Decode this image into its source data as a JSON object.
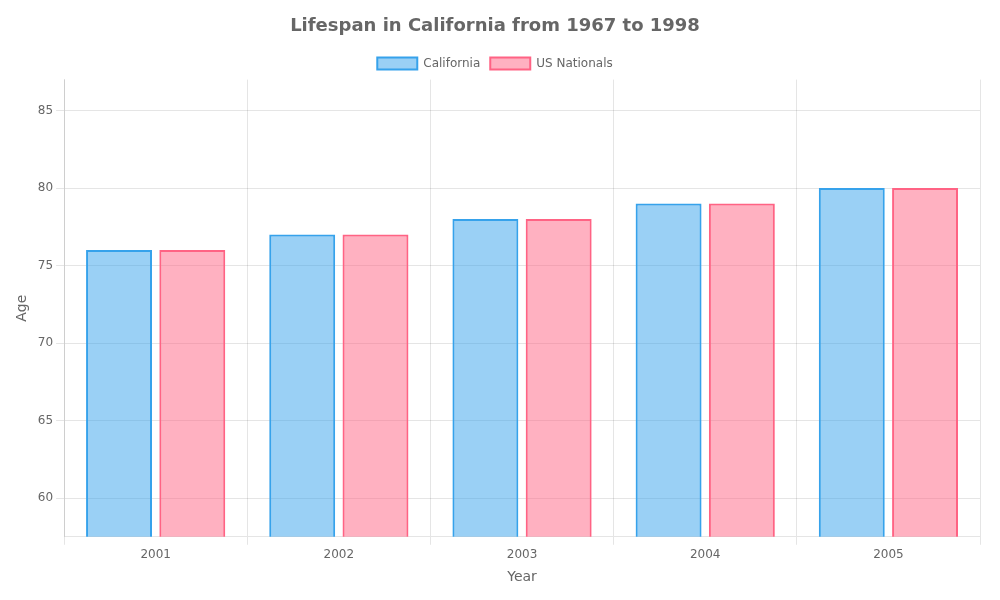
{
  "chart_data": {
    "type": "bar",
    "title": "Lifespan in California from 1967 to 1998",
    "x_label": "Year",
    "y_label": "Age",
    "categories": [
      "2001",
      "2002",
      "2003",
      "2004",
      "2005"
    ],
    "series": [
      {
        "name": "California",
        "values": [
          76,
          77,
          78,
          79,
          80
        ]
      },
      {
        "name": "US Nationals",
        "values": [
          76,
          77,
          78,
          79,
          80
        ]
      }
    ],
    "ylim": [
      57.5,
      87
    ],
    "yticks": [
      60,
      65,
      70,
      75,
      80,
      85
    ],
    "grid": true,
    "legend": "top"
  }
}
